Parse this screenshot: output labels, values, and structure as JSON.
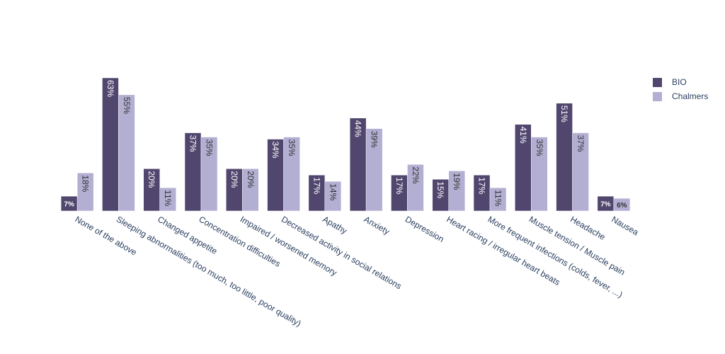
{
  "chart_data": {
    "type": "bar",
    "categories": [
      "None of the above",
      "Sleeping abnormalities (too much, too little, poor quality)",
      "Changed appetite",
      "Concentration difficulties",
      "Impaired / worsened memory",
      "Decreased  activity in social relations",
      "Apathy",
      "Anxiety",
      "Depression",
      "Heart racing / irregular heart beats",
      "More frequent infections (colds, fever, ...)",
      "Muscle tension / Muscle pain",
      "Headache",
      "Nausea"
    ],
    "series": [
      {
        "name": "BIO",
        "color": "#51476e",
        "values": [
          7,
          63,
          20,
          37,
          20,
          34,
          17,
          44,
          17,
          15,
          17,
          41,
          51,
          7
        ],
        "labels": [
          "7%",
          "63%",
          "20%",
          "37%",
          "20%",
          "34%",
          "17%",
          "44%",
          "17%",
          "15%",
          "17%",
          "41%",
          "51%",
          "7%"
        ]
      },
      {
        "name": "Chalmers",
        "color": "#b2afd2",
        "values": [
          18,
          55,
          11,
          35,
          20,
          35,
          14,
          39,
          22,
          19,
          11,
          35,
          37,
          6
        ],
        "labels": [
          "18%",
          "55%",
          "11%",
          "35%",
          "20%",
          "35%",
          "14%",
          "39%",
          "22%",
          "19%",
          "11%",
          "35%",
          "37%",
          "6%"
        ]
      }
    ],
    "ylim": [
      0,
      63
    ],
    "grid": false,
    "legend_position": "top-right"
  }
}
